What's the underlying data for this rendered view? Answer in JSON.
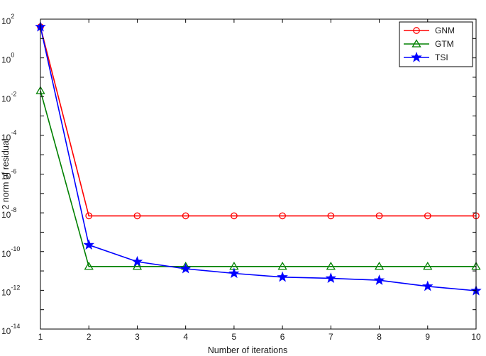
{
  "chart_data": {
    "type": "line",
    "title": "",
    "xlabel": "Number of iterations",
    "ylabel": "2 norm of residual",
    "x": [
      1,
      2,
      3,
      4,
      5,
      6,
      7,
      8,
      9,
      10
    ],
    "xlim": [
      1,
      10
    ],
    "ylim": [
      1e-14,
      100.0
    ],
    "yscale": "log",
    "x_ticks": [
      "1",
      "2",
      "3",
      "4",
      "5",
      "6",
      "7",
      "8",
      "9",
      "10"
    ],
    "y_ticks": [
      {
        "base": "10",
        "exp": "2"
      },
      {
        "base": "10",
        "exp": "0"
      },
      {
        "base": "10",
        "exp": "-2"
      },
      {
        "base": "10",
        "exp": "-4"
      },
      {
        "base": "10",
        "exp": "-6"
      },
      {
        "base": "10",
        "exp": "-8"
      },
      {
        "base": "10",
        "exp": "-10"
      },
      {
        "base": "10",
        "exp": "-12"
      },
      {
        "base": "10",
        "exp": "-14"
      }
    ],
    "grid": false,
    "legend_position": "top-right",
    "series": [
      {
        "name": "GNM",
        "color": "#ff0000",
        "marker": "circle",
        "values": [
          40,
          7e-09,
          7e-09,
          7e-09,
          7e-09,
          7e-09,
          7e-09,
          7e-09,
          7e-09,
          7e-09
        ]
      },
      {
        "name": "GTM",
        "color": "#008000",
        "marker": "triangle",
        "values": [
          0.02,
          1.7e-11,
          1.7e-11,
          1.7e-11,
          1.7e-11,
          1.7e-11,
          1.7e-11,
          1.7e-11,
          1.7e-11,
          1.7e-11
        ]
      },
      {
        "name": "TSI",
        "color": "#0000ff",
        "marker": "star",
        "values": [
          40,
          2.2e-10,
          3e-11,
          1.3e-11,
          7.5e-12,
          4.8e-12,
          4.2e-12,
          3.3e-12,
          1.6e-12,
          9.5e-13
        ]
      }
    ]
  }
}
